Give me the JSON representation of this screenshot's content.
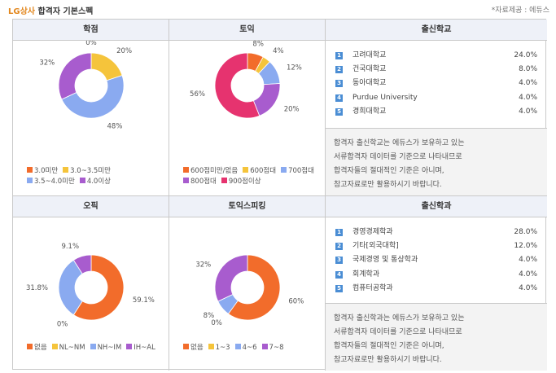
{
  "header": {
    "company": "LG상사",
    "title": "합격자 기본스펙",
    "source": "*자료제공 : 에듀스"
  },
  "charts": [
    {
      "name": "학점",
      "chart_data": {
        "type": "pie",
        "labels": [
          "3.0미만",
          "3.0~3.5미만",
          "3.5~4.0미만",
          "4.0이상"
        ],
        "values": [
          0,
          20,
          48,
          32
        ],
        "value_labels": [
          "0%",
          "20%",
          "48%",
          "32%"
        ],
        "colors": [
          "#f26c2b",
          "#f5c43b",
          "#8aaaf0",
          "#a85cce"
        ]
      }
    },
    {
      "name": "토익",
      "chart_data": {
        "type": "pie",
        "labels": [
          "600점미만/없음",
          "600점대",
          "700점대",
          "800점대",
          "900점이상"
        ],
        "values": [
          8,
          4,
          12,
          20,
          56
        ],
        "value_labels": [
          "8%",
          "4%",
          "12%",
          "20%",
          "56%"
        ],
        "colors": [
          "#f26c2b",
          "#f5c43b",
          "#8aaaf0",
          "#a85cce",
          "#e6336f"
        ]
      }
    },
    {
      "name": "오픽",
      "chart_data": {
        "type": "pie",
        "labels": [
          "없음",
          "NL~NM",
          "NH~IM",
          "IH~AL"
        ],
        "values": [
          59.1,
          0,
          31.8,
          9.1
        ],
        "value_labels": [
          "59.1%",
          "0%",
          "31.8%",
          "9.1%"
        ],
        "colors": [
          "#f26c2b",
          "#f5c43b",
          "#8aaaf0",
          "#a85cce"
        ]
      }
    },
    {
      "name": "토익스피킹",
      "chart_data": {
        "type": "pie",
        "labels": [
          "없음",
          "1~3",
          "4~6",
          "7~8"
        ],
        "values": [
          60,
          0,
          8,
          32
        ],
        "value_labels": [
          "60%",
          "0%",
          "8%",
          "32%"
        ],
        "colors": [
          "#f26c2b",
          "#f5c43b",
          "#8aaaf0",
          "#a85cce"
        ]
      }
    }
  ],
  "school": {
    "title": "출신학교",
    "items": [
      {
        "rank": "1",
        "name": "고려대학교",
        "value": "24.0%"
      },
      {
        "rank": "2",
        "name": "건국대학교",
        "value": "8.0%"
      },
      {
        "rank": "3",
        "name": "동아대학교",
        "value": "4.0%"
      },
      {
        "rank": "4",
        "name": "Purdue University",
        "value": "4.0%"
      },
      {
        "rank": "5",
        "name": "경희대학교",
        "value": "4.0%"
      }
    ],
    "note": [
      "합격자 출신학교는 에듀스가 보유하고 있는",
      "서류합격자 데이터를 기준으로 나타내므로",
      "합격자들의 절대적인 기준은 아니며,",
      "참고자료로만 활용하시기 바랍니다."
    ]
  },
  "major": {
    "title": "출신학과",
    "items": [
      {
        "rank": "1",
        "name": "경영경제학과",
        "value": "28.0%"
      },
      {
        "rank": "2",
        "name": "기타[외국대학]",
        "value": "12.0%"
      },
      {
        "rank": "3",
        "name": "국제경영 및 통상학과",
        "value": "4.0%"
      },
      {
        "rank": "4",
        "name": "회계학과",
        "value": "4.0%"
      },
      {
        "rank": "5",
        "name": "컴퓨터공학과",
        "value": "4.0%"
      }
    ],
    "note": [
      "합격자 출신학과는 에듀스가 보유하고 있는",
      "서류합격자 데이터를 기준으로 나타내므로",
      "합격자들의 절대적인 기준은 아니며,",
      "참고자료로만 활용하시기 바랍니다."
    ]
  }
}
